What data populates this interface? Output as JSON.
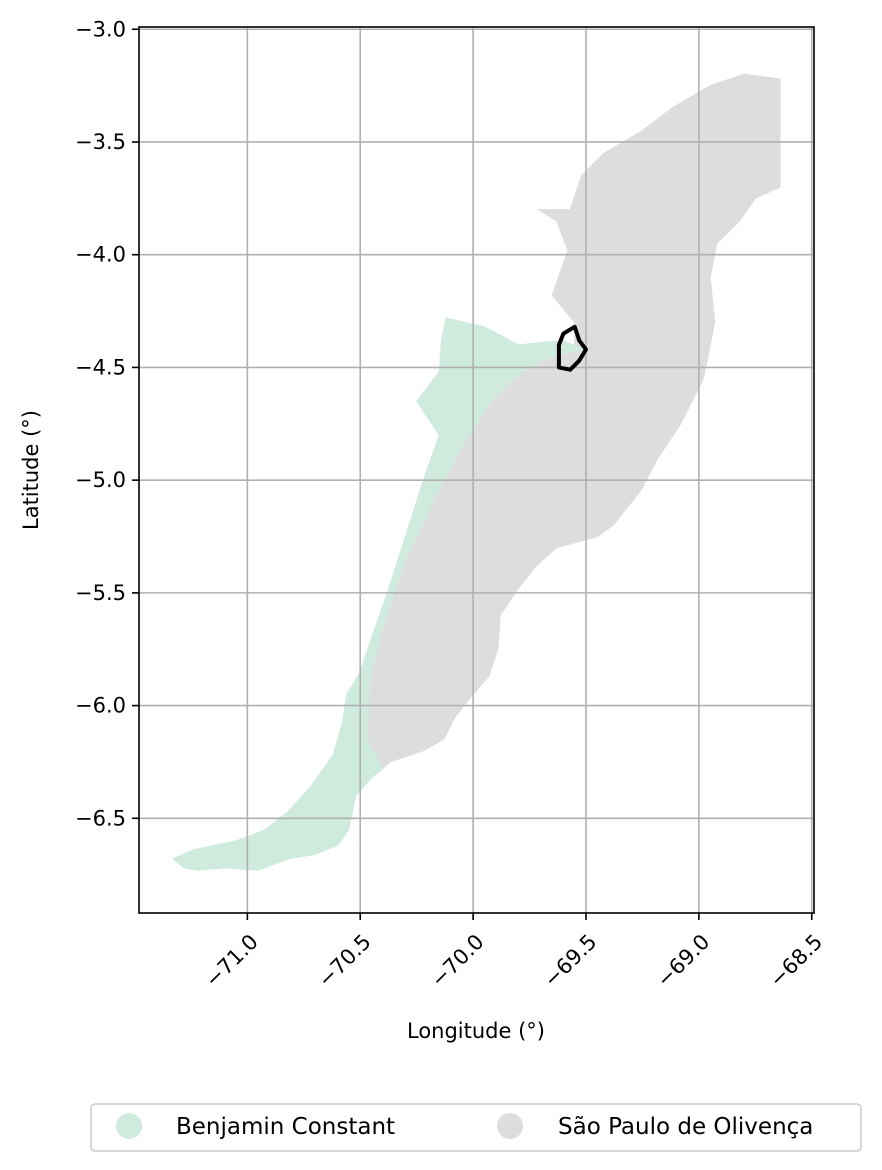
{
  "map": {
    "xlabel": "Longitude (°)",
    "ylabel": "Latitude (°)",
    "xlim": [
      -71.48,
      -68.49
    ],
    "ylim": [
      -6.92,
      -2.99
    ],
    "x_ticks": [
      -71.0,
      -70.5,
      -70.0,
      -69.5,
      -69.0,
      -68.5
    ],
    "x_tick_labels": [
      "−71.0",
      "−70.5",
      "−70.0",
      "−69.5",
      "−69.0",
      "−68.5"
    ],
    "y_ticks": [
      -3.0,
      -3.5,
      -4.0,
      -4.5,
      -5.0,
      -5.5,
      -6.0,
      -6.5
    ],
    "y_tick_labels": [
      "−3.0",
      "−3.5",
      "−4.0",
      "−4.5",
      "−5.0",
      "−5.5",
      "−6.0",
      "−6.5"
    ],
    "grid": true,
    "legend": {
      "placement": "bottom-center",
      "entries": [
        {
          "name": "Benjamin Constant",
          "color": "#cfebdd"
        },
        {
          "name": "São Paulo de Olivença",
          "color": "#dddddd"
        }
      ]
    },
    "regions": [
      {
        "name": "São Paulo de Olivença",
        "color": "#dddddd",
        "outline": [
          [
            -69.57,
            -3.8
          ],
          [
            -69.52,
            -3.65
          ],
          [
            -69.42,
            -3.55
          ],
          [
            -69.25,
            -3.45
          ],
          [
            -69.12,
            -3.35
          ],
          [
            -68.95,
            -3.25
          ],
          [
            -68.8,
            -3.2
          ],
          [
            -68.64,
            -3.22
          ],
          [
            -68.64,
            -3.7
          ],
          [
            -68.75,
            -3.75
          ],
          [
            -68.82,
            -3.85
          ],
          [
            -68.92,
            -3.95
          ],
          [
            -68.95,
            -4.1
          ],
          [
            -68.93,
            -4.3
          ],
          [
            -68.98,
            -4.55
          ],
          [
            -69.08,
            -4.75
          ],
          [
            -69.18,
            -4.9
          ],
          [
            -69.26,
            -5.05
          ],
          [
            -69.38,
            -5.2
          ],
          [
            -69.45,
            -5.25
          ],
          [
            -69.63,
            -5.3
          ],
          [
            -69.72,
            -5.38
          ],
          [
            -69.8,
            -5.48
          ],
          [
            -69.88,
            -5.6
          ],
          [
            -69.89,
            -5.75
          ],
          [
            -69.93,
            -5.87
          ],
          [
            -70.0,
            -5.95
          ],
          [
            -70.08,
            -6.05
          ],
          [
            -70.13,
            -6.15
          ],
          [
            -70.22,
            -6.2
          ],
          [
            -70.37,
            -6.25
          ],
          [
            -70.4,
            -6.28
          ],
          [
            -70.47,
            -6.15
          ],
          [
            -70.46,
            -5.9
          ],
          [
            -70.4,
            -5.65
          ],
          [
            -70.3,
            -5.35
          ],
          [
            -70.17,
            -5.08
          ],
          [
            -70.05,
            -4.85
          ],
          [
            -69.92,
            -4.65
          ],
          [
            -69.82,
            -4.55
          ],
          [
            -69.7,
            -4.47
          ],
          [
            -69.55,
            -4.42
          ],
          [
            -69.55,
            -4.3
          ],
          [
            -69.65,
            -4.18
          ],
          [
            -69.58,
            -3.98
          ],
          [
            -69.63,
            -3.85
          ],
          [
            -69.71,
            -3.8
          ],
          [
            -69.57,
            -3.8
          ]
        ]
      },
      {
        "name": "Benjamin Constant",
        "color": "#cfebdd",
        "outline": [
          [
            -70.12,
            -4.28
          ],
          [
            -69.95,
            -4.32
          ],
          [
            -69.8,
            -4.4
          ],
          [
            -69.6,
            -4.38
          ],
          [
            -69.52,
            -4.42
          ],
          [
            -69.7,
            -4.47
          ],
          [
            -69.82,
            -4.55
          ],
          [
            -69.92,
            -4.65
          ],
          [
            -70.05,
            -4.85
          ],
          [
            -70.17,
            -5.08
          ],
          [
            -70.3,
            -5.35
          ],
          [
            -70.4,
            -5.65
          ],
          [
            -70.46,
            -5.9
          ],
          [
            -70.47,
            -6.15
          ],
          [
            -70.4,
            -6.28
          ],
          [
            -70.45,
            -6.32
          ],
          [
            -70.52,
            -6.4
          ],
          [
            -70.55,
            -6.55
          ],
          [
            -70.6,
            -6.62
          ],
          [
            -70.7,
            -6.66
          ],
          [
            -70.82,
            -6.68
          ],
          [
            -70.95,
            -6.73
          ],
          [
            -71.1,
            -6.72
          ],
          [
            -71.22,
            -6.73
          ],
          [
            -71.28,
            -6.72
          ],
          [
            -71.33,
            -6.68
          ],
          [
            -71.24,
            -6.64
          ],
          [
            -71.05,
            -6.6
          ],
          [
            -70.92,
            -6.55
          ],
          [
            -70.82,
            -6.47
          ],
          [
            -70.72,
            -6.36
          ],
          [
            -70.62,
            -6.22
          ],
          [
            -70.58,
            -6.08
          ],
          [
            -70.56,
            -5.95
          ],
          [
            -70.5,
            -5.85
          ],
          [
            -70.45,
            -5.7
          ],
          [
            -70.38,
            -5.5
          ],
          [
            -70.3,
            -5.25
          ],
          [
            -70.22,
            -5.0
          ],
          [
            -70.15,
            -4.8
          ],
          [
            -70.25,
            -4.65
          ],
          [
            -70.15,
            -4.52
          ],
          [
            -70.14,
            -4.38
          ],
          [
            -70.12,
            -4.28
          ]
        ]
      }
    ],
    "highlight": {
      "color": "#000000",
      "outline": [
        [
          -69.6,
          -4.35
        ],
        [
          -69.55,
          -4.32
        ],
        [
          -69.53,
          -4.38
        ],
        [
          -69.5,
          -4.42
        ],
        [
          -69.53,
          -4.47
        ],
        [
          -69.57,
          -4.51
        ],
        [
          -69.62,
          -4.5
        ],
        [
          -69.62,
          -4.4
        ],
        [
          -69.6,
          -4.35
        ]
      ]
    }
  }
}
